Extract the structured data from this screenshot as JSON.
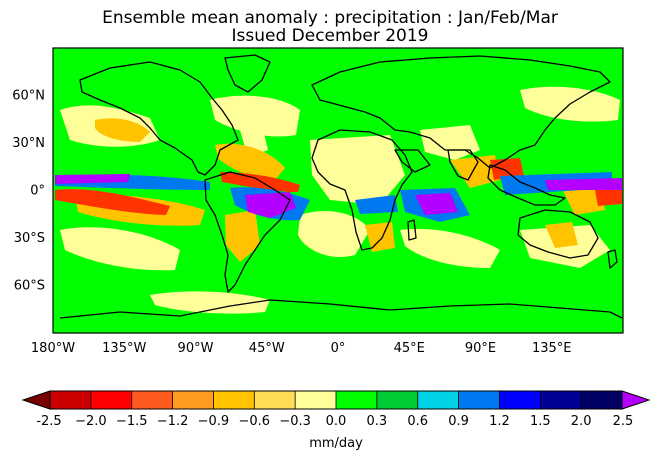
{
  "title_line1": "Ensemble mean anomaly : precipitation : Jan/Feb/Mar",
  "title_line2": "Issued December 2019",
  "lat_labels": [
    "60°N",
    "30°N",
    "0°",
    "30°S",
    "60°S"
  ],
  "lat_values": [
    60,
    30,
    0,
    -30,
    -60
  ],
  "lon_labels": [
    "180°W",
    "135°W",
    "90°W",
    "45°W",
    "0°",
    "45°E",
    "90°E",
    "135°E"
  ],
  "lon_values": [
    -180,
    -135,
    -90,
    -45,
    0,
    45,
    90,
    135
  ],
  "colorbar": {
    "unit_label": "mm/day",
    "tick_labels": [
      "-2.5",
      "−2.0",
      "−1.5",
      "−1.2",
      "−0.9",
      "−0.6",
      "−0.3",
      "0.0",
      "0.3",
      "0.6",
      "0.9",
      "1.2",
      "1.5",
      "2.0",
      "2.5"
    ],
    "tick_values": [
      -2.5,
      -2.0,
      -1.5,
      -1.2,
      -0.9,
      -0.6,
      -0.3,
      0.0,
      0.3,
      0.6,
      0.9,
      1.2,
      1.5,
      2.0,
      2.5
    ],
    "under_color": "#7a0000",
    "over_color": "#b300ff",
    "colors": [
      "#cc0000",
      "#ff0000",
      "#ff5a1e",
      "#ff9b1e",
      "#ffc300",
      "#ffdd55",
      "#ffff99",
      "#00ff00",
      "#00cc33",
      "#00d2e6",
      "#0078f0",
      "#0000ff",
      "#000096",
      "#000064"
    ]
  },
  "background_color": "#00ff00"
}
